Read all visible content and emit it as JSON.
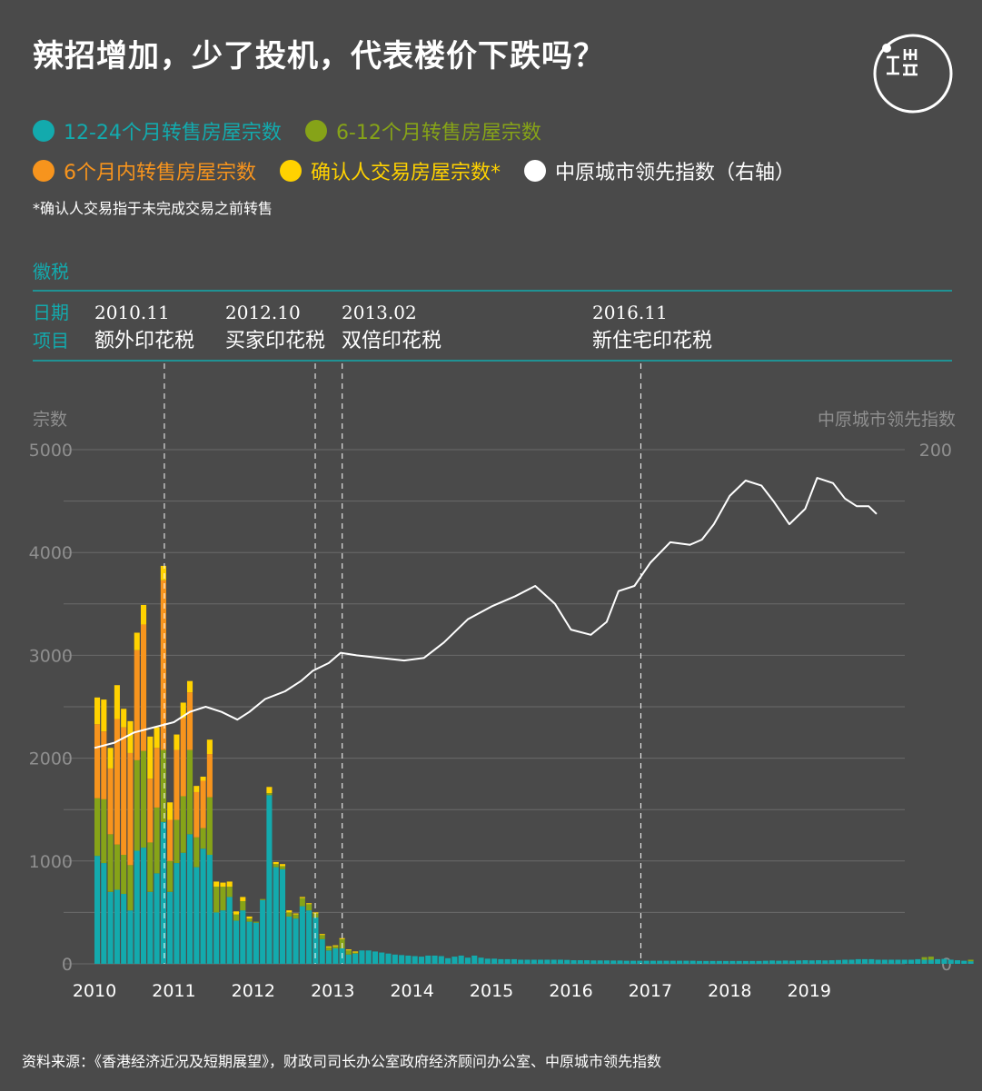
{
  "title": "辣招增加，少了投机，代表楼价下跌吗？",
  "legend": [
    {
      "label": "12-24个月转售房屋宗数",
      "color": "#13aaad"
    },
    {
      "label": "6-12个月转售房屋宗数",
      "color": "#86a318"
    },
    {
      "label": "6个月内转售房屋宗数",
      "color": "#f7941d"
    },
    {
      "label": "确认人交易房屋宗数*",
      "color": "#ffd200"
    },
    {
      "label": "中原城市领先指数（右轴）",
      "color": "#ffffff"
    }
  ],
  "footnote": "*确认人交易指于未完成交易之前转售",
  "tax": {
    "header": "徽税",
    "date_label": "日期",
    "item_label": "项目",
    "events": [
      {
        "date": "2010.11",
        "name": "额外印花税",
        "x": 2010.88
      },
      {
        "date": "2012.10",
        "name": "买家印花税",
        "x": 2012.78
      },
      {
        "date": "2013.02",
        "name": "双倍印花税",
        "x": 2013.12
      },
      {
        "date": "2016.11",
        "name": "新住宅印花税",
        "x": 2016.88
      }
    ]
  },
  "source": "资料来源：《香港经济近况及短期展望》，财政司司长办公室政府经济顾问办公室、中原城市领先指数",
  "chart_data": {
    "type": "bar",
    "stacked": true,
    "left_axis_label": "宗数",
    "right_axis_label": "中原城市领先指数",
    "ylim": [
      0,
      5000
    ],
    "yticks": [
      0,
      1000,
      2000,
      3000,
      4000,
      5000
    ],
    "y2lim": [
      0,
      200
    ],
    "y2ticks": [
      0,
      200
    ],
    "xlim": [
      2010,
      2020
    ],
    "xticks": [
      2010,
      2011,
      2012,
      2013,
      2014,
      2015,
      2016,
      2017,
      2018,
      2019
    ],
    "grid": true,
    "bar_start": 2010.0,
    "bar_step": 0.08333,
    "series": [
      {
        "name": "12-24个月转售房屋宗数",
        "color": "#13aaad",
        "values": [
          1050,
          980,
          700,
          720,
          680,
          520,
          1100,
          1130,
          700,
          880,
          1380,
          700,
          980,
          1080,
          1260,
          940,
          1120,
          1060,
          500,
          520,
          650,
          420,
          520,
          410,
          400,
          620,
          1640,
          940,
          920,
          460,
          440,
          560,
          520,
          450,
          240,
          130,
          150,
          150,
          90,
          100,
          130,
          130,
          120,
          110,
          100,
          90,
          85,
          80,
          75,
          70,
          80,
          80,
          75,
          55,
          70,
          80,
          60,
          80,
          60,
          50,
          50,
          45,
          45,
          45,
          40,
          40,
          40,
          40,
          40,
          40,
          40,
          38,
          35,
          35,
          35,
          33,
          33,
          33,
          32,
          32,
          30,
          30,
          30,
          30,
          30,
          30,
          30,
          30,
          30,
          30,
          30,
          28,
          28,
          28,
          28,
          28,
          28,
          28,
          28,
          28,
          28,
          30,
          32,
          30,
          32,
          30,
          33,
          35,
          33,
          35,
          33,
          35,
          37,
          40,
          40,
          45,
          45,
          45,
          40,
          40,
          40,
          40,
          40,
          40,
          45,
          40,
          40,
          45,
          48,
          40,
          35,
          30,
          25
        ]
      },
      {
        "name": "6-12个月转售房屋宗数",
        "color": "#86a318",
        "values": [
          560,
          620,
          560,
          440,
          380,
          440,
          880,
          940,
          480,
          640,
          700,
          300,
          420,
          550,
          820,
          290,
          200,
          560,
          250,
          230,
          100,
          60,
          90,
          30,
          10,
          10,
          20,
          30,
          30,
          40,
          40,
          80,
          60,
          40,
          40,
          30,
          20,
          90,
          40,
          10,
          0,
          0,
          0,
          0,
          0,
          0,
          0,
          0,
          0,
          0,
          0,
          0,
          0,
          0,
          0,
          0,
          0,
          0,
          0,
          0,
          0,
          0,
          0,
          0,
          0,
          0,
          0,
          0,
          0,
          0,
          0,
          0,
          0,
          0,
          0,
          0,
          0,
          0,
          0,
          0,
          0,
          0,
          0,
          0,
          0,
          0,
          0,
          0,
          0,
          0,
          0,
          0,
          0,
          0,
          0,
          0,
          0,
          0,
          0,
          0,
          0,
          0,
          0,
          0,
          0,
          0,
          0,
          0,
          0,
          0,
          0,
          0,
          0,
          0,
          0,
          0,
          0,
          0,
          0,
          0,
          0,
          0,
          0,
          0,
          0,
          25,
          30,
          0,
          0,
          0,
          0,
          0,
          15,
          15,
          10,
          0,
          0,
          0,
          0,
          0,
          0,
          0,
          0,
          0,
          0,
          0,
          0,
          0,
          0,
          0,
          0
        ]
      },
      {
        "name": "6个月内转售房屋宗数",
        "color": "#f7941d",
        "values": [
          720,
          660,
          640,
          1220,
          1240,
          1090,
          1070,
          1230,
          620,
          580,
          1650,
          400,
          680,
          760,
          560,
          440,
          460,
          420,
          0,
          0,
          0,
          0,
          0,
          0,
          0,
          0,
          0,
          0,
          0,
          0,
          0,
          0,
          0,
          0,
          0,
          0,
          0,
          0,
          0,
          0,
          0,
          0,
          0,
          0,
          0,
          0,
          0,
          0,
          0,
          0,
          0,
          0,
          0,
          0,
          0,
          0,
          0,
          0,
          0,
          0,
          0,
          0,
          0,
          0,
          0,
          0,
          0,
          0,
          0,
          0,
          0,
          0,
          0,
          0,
          0,
          0,
          0,
          0,
          0,
          0,
          0,
          0,
          0,
          0,
          0,
          0,
          0,
          0,
          0,
          0,
          0,
          0,
          0,
          0,
          0,
          0,
          0,
          0,
          0,
          0,
          0,
          0,
          0,
          0,
          0,
          0,
          0,
          0,
          0,
          0,
          0,
          0,
          0,
          0,
          0,
          0,
          0,
          0,
          0,
          0,
          0,
          0,
          0,
          0,
          0,
          0,
          0,
          0,
          0,
          0,
          0,
          0,
          0,
          0,
          0,
          0,
          0,
          0,
          20,
          0,
          0,
          0,
          0,
          0,
          0,
          0,
          0,
          0,
          25,
          30,
          0,
          0,
          0
        ]
      },
      {
        "name": "确认人交易房屋宗数*",
        "color": "#ffd200",
        "values": [
          260,
          310,
          200,
          330,
          180,
          310,
          170,
          190,
          410,
          200,
          140,
          170,
          150,
          150,
          110,
          60,
          40,
          140,
          50,
          40,
          50,
          30,
          40,
          20,
          0,
          0,
          60,
          20,
          20,
          20,
          10,
          10,
          10,
          10,
          10,
          10,
          10,
          10,
          10,
          10,
          0,
          0,
          0,
          0,
          0,
          0,
          0,
          0,
          0,
          0,
          0,
          0,
          0,
          0,
          0,
          0,
          0,
          0,
          0,
          0,
          0,
          0,
          0,
          0,
          0,
          0,
          0,
          0,
          0,
          0,
          0,
          0,
          0,
          0,
          0,
          0,
          0,
          0,
          0,
          0,
          0,
          0,
          0,
          0,
          0,
          0,
          0,
          0,
          0,
          0,
          0,
          0,
          0,
          0,
          0,
          0,
          0,
          0,
          0,
          0,
          0,
          0,
          0,
          0,
          0,
          0,
          0,
          0,
          0,
          0,
          0,
          0,
          0,
          0,
          0,
          0,
          0,
          0,
          0,
          0,
          0,
          0,
          0,
          0,
          0,
          0,
          0,
          0,
          0,
          0,
          0,
          0,
          0,
          0,
          0,
          0,
          0,
          0,
          0,
          0,
          0,
          0,
          0,
          0,
          0,
          0,
          0,
          0,
          0,
          0,
          0,
          0,
          0,
          0,
          0
        ]
      },
      {
        "name": "中原城市领先指数（右轴）",
        "type": "line",
        "axis": "right",
        "color": "#ffffff",
        "x": [
          2010.0,
          2010.25,
          2010.5,
          2010.75,
          2011.0,
          2011.2,
          2011.4,
          2011.6,
          2011.8,
          2011.95,
          2012.15,
          2012.4,
          2012.6,
          2012.75,
          2012.95,
          2013.1,
          2013.3,
          2013.6,
          2013.9,
          2014.15,
          2014.4,
          2014.7,
          2015.0,
          2015.3,
          2015.55,
          2015.8,
          2016.0,
          2016.25,
          2016.45,
          2016.6,
          2016.8,
          2017.0,
          2017.25,
          2017.5,
          2017.65,
          2017.8,
          2018.0,
          2018.2,
          2018.4,
          2018.55,
          2018.75,
          2018.95,
          2019.1,
          2019.3,
          2019.45,
          2019.6,
          2019.75,
          2019.85
        ],
        "y": [
          84,
          86,
          90,
          92,
          94,
          98,
          100,
          98,
          95,
          98,
          103,
          106,
          110,
          114,
          117,
          121,
          120,
          119,
          118,
          119,
          125,
          134,
          139,
          143,
          147,
          140,
          130,
          128,
          133,
          145,
          147,
          156,
          164,
          163,
          165,
          171,
          182,
          188,
          186,
          180,
          171,
          177,
          189,
          187,
          181,
          178,
          178,
          175
        ]
      }
    ]
  }
}
